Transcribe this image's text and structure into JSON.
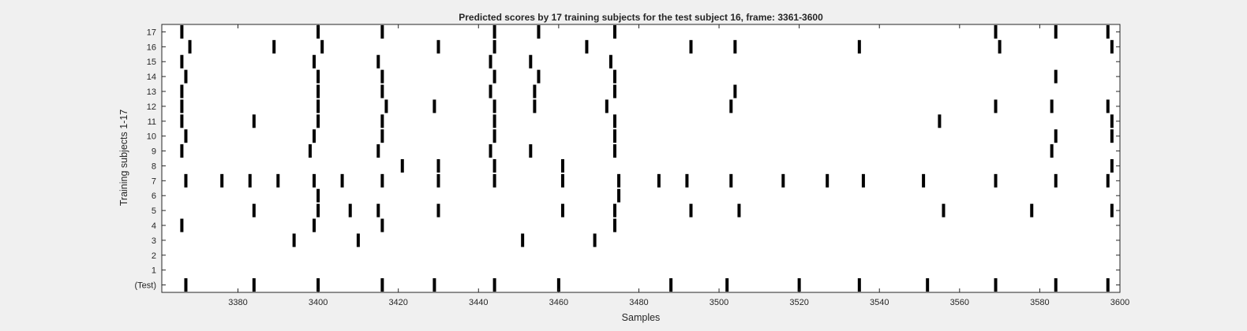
{
  "chart_data": {
    "type": "scatter",
    "title": "Predicted scores by 17 training subjects for the test subject 16, frame: 3361-3600",
    "xlabel": "Samples",
    "ylabel": "Training subjects 1-17",
    "xlim": [
      3361,
      3600
    ],
    "ylim": [
      -0.5,
      17.5
    ],
    "x_ticks": [
      3380,
      3400,
      3420,
      3440,
      3460,
      3480,
      3500,
      3520,
      3540,
      3560,
      3580,
      3600
    ],
    "y_ticks": [
      {
        "value": 0,
        "label": "(Test)"
      },
      {
        "value": 1,
        "label": "1"
      },
      {
        "value": 2,
        "label": "2"
      },
      {
        "value": 3,
        "label": "3"
      },
      {
        "value": 4,
        "label": "4"
      },
      {
        "value": 5,
        "label": "5"
      },
      {
        "value": 6,
        "label": "6"
      },
      {
        "value": 7,
        "label": "7"
      },
      {
        "value": 8,
        "label": "8"
      },
      {
        "value": 9,
        "label": "9"
      },
      {
        "value": 10,
        "label": "10"
      },
      {
        "value": 11,
        "label": "11"
      },
      {
        "value": 12,
        "label": "12"
      },
      {
        "value": 13,
        "label": "13"
      },
      {
        "value": 14,
        "label": "14"
      },
      {
        "value": 15,
        "label": "15"
      },
      {
        "value": 16,
        "label": "16"
      },
      {
        "value": 17,
        "label": "17"
      }
    ],
    "grid": false,
    "marker": "vertical-bar",
    "marker_color": "#000000",
    "rows": [
      {
        "row": 0,
        "x": [
          3367,
          3384,
          3400,
          3416,
          3429,
          3444,
          3460,
          3488,
          3502,
          3520,
          3535,
          3552,
          3569,
          3584,
          3597
        ]
      },
      {
        "row": 1,
        "x": []
      },
      {
        "row": 2,
        "x": []
      },
      {
        "row": 3,
        "x": [
          3394,
          3410,
          3451,
          3469
        ]
      },
      {
        "row": 4,
        "x": [
          3366,
          3399,
          3416,
          3474
        ]
      },
      {
        "row": 5,
        "x": [
          3384,
          3400,
          3408,
          3415,
          3430,
          3461,
          3474,
          3493,
          3505,
          3556,
          3578,
          3598
        ]
      },
      {
        "row": 6,
        "x": [
          3400,
          3475
        ]
      },
      {
        "row": 7,
        "x": [
          3367,
          3376,
          3383,
          3390,
          3399,
          3406,
          3416,
          3430,
          3444,
          3461,
          3475,
          3485,
          3492,
          3503,
          3516,
          3527,
          3536,
          3551,
          3569,
          3584,
          3597
        ]
      },
      {
        "row": 8,
        "x": [
          3421,
          3430,
          3444,
          3461,
          3598
        ]
      },
      {
        "row": 9,
        "x": [
          3366,
          3398,
          3415,
          3443,
          3453,
          3474,
          3583
        ]
      },
      {
        "row": 10,
        "x": [
          3367,
          3399,
          3416,
          3444,
          3474,
          3584,
          3598
        ]
      },
      {
        "row": 11,
        "x": [
          3366,
          3384,
          3400,
          3416,
          3444,
          3474,
          3555,
          3598
        ]
      },
      {
        "row": 12,
        "x": [
          3366,
          3400,
          3417,
          3429,
          3444,
          3454,
          3472,
          3503,
          3569,
          3583,
          3597
        ]
      },
      {
        "row": 13,
        "x": [
          3366,
          3400,
          3416,
          3443,
          3454,
          3474,
          3504
        ]
      },
      {
        "row": 14,
        "x": [
          3367,
          3400,
          3416,
          3444,
          3455,
          3474,
          3584
        ]
      },
      {
        "row": 15,
        "x": [
          3366,
          3399,
          3415,
          3443,
          3453,
          3473
        ]
      },
      {
        "row": 16,
        "x": [
          3368,
          3389,
          3401,
          3430,
          3444,
          3467,
          3493,
          3504,
          3535,
          3570,
          3598
        ]
      },
      {
        "row": 17,
        "x": [
          3366,
          3400,
          3416,
          3444,
          3455,
          3474,
          3569,
          3584,
          3597
        ]
      }
    ]
  }
}
